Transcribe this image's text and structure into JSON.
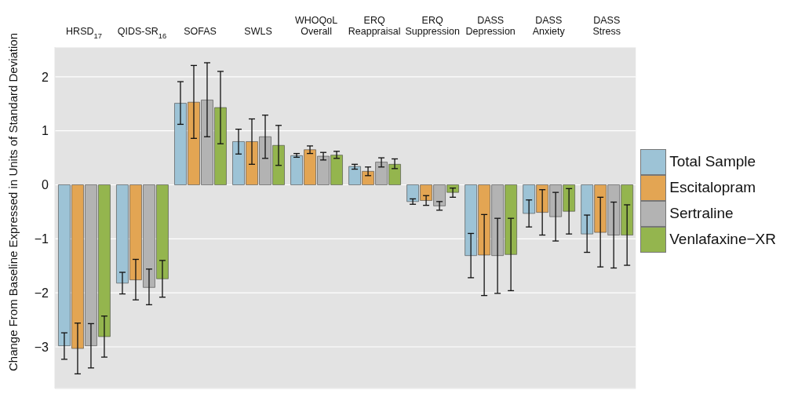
{
  "chart_data": {
    "type": "bar",
    "ylabel": "Change From Baseline Expressed in Units of Standard Deviation",
    "categories": [
      "HRSD$_{17}$",
      "QIDS-SR$_{16}$",
      "SOFAS",
      "SWLS",
      "WHOQoL Overall",
      "ERQ Reappraisal",
      "ERQ Suppression",
      "DASS Depression",
      "DASS Anxiety",
      "DASS Stress"
    ],
    "series": [
      {
        "name": "Total Sample",
        "color": "#9dc3d6",
        "values": [
          -2.98,
          -1.82,
          1.51,
          0.8,
          0.54,
          0.34,
          -0.31,
          -1.31,
          -0.53,
          -0.91
        ],
        "errors": [
          [
            -3.23,
            -2.74
          ],
          [
            -2.02,
            -1.62
          ],
          [
            1.12,
            1.91
          ],
          [
            0.57,
            1.03
          ],
          [
            0.51,
            0.58
          ],
          [
            0.29,
            0.38
          ],
          [
            -0.36,
            -0.26
          ],
          [
            -1.72,
            -0.9
          ],
          [
            -0.78,
            -0.28
          ],
          [
            -1.25,
            -0.56
          ]
        ]
      },
      {
        "name": "Escitalopram",
        "color": "#e3a553",
        "values": [
          -3.03,
          -1.76,
          1.53,
          0.8,
          0.65,
          0.25,
          -0.29,
          -1.3,
          -0.51,
          -0.88
        ],
        "errors": [
          [
            -3.5,
            -2.56
          ],
          [
            -2.13,
            -1.38
          ],
          [
            0.86,
            2.21
          ],
          [
            0.38,
            1.22
          ],
          [
            0.58,
            0.72
          ],
          [
            0.17,
            0.33
          ],
          [
            -0.38,
            -0.2
          ],
          [
            -2.05,
            -0.55
          ],
          [
            -0.93,
            -0.09
          ],
          [
            -1.52,
            -0.23
          ]
        ]
      },
      {
        "name": "Sertraline",
        "color": "#b3b3b3",
        "values": [
          -2.98,
          -1.9,
          1.57,
          0.89,
          0.53,
          0.42,
          -0.39,
          -1.31,
          -0.59,
          -0.93
        ],
        "errors": [
          [
            -3.39,
            -2.57
          ],
          [
            -2.22,
            -1.56
          ],
          [
            0.89,
            2.26
          ],
          [
            0.49,
            1.29
          ],
          [
            0.46,
            0.6
          ],
          [
            0.33,
            0.5
          ],
          [
            -0.47,
            -0.31
          ],
          [
            -2.01,
            -0.62
          ],
          [
            -1.04,
            -0.14
          ],
          [
            -1.54,
            -0.32
          ]
        ]
      },
      {
        "name": "Venlafaxine−XR",
        "color": "#94b54e",
        "values": [
          -2.81,
          -1.74,
          1.43,
          0.73,
          0.55,
          0.38,
          -0.14,
          -1.29,
          -0.49,
          -0.93
        ],
        "errors": [
          [
            -3.19,
            -2.43
          ],
          [
            -2.08,
            -1.4
          ],
          [
            0.76,
            2.1
          ],
          [
            0.36,
            1.1
          ],
          [
            0.49,
            0.62
          ],
          [
            0.3,
            0.48
          ],
          [
            -0.23,
            -0.06
          ],
          [
            -1.96,
            -0.62
          ],
          [
            -0.91,
            -0.07
          ],
          [
            -1.49,
            -0.37
          ]
        ]
      }
    ],
    "ylim": [
      -3.77,
      2.55
    ],
    "yticks": [
      {
        "value": -3,
        "label": "−3"
      },
      {
        "value": -2,
        "label": "−2"
      },
      {
        "value": -1,
        "label": "−1"
      },
      0,
      1,
      2
    ],
    "grid": "y",
    "legend": "right"
  }
}
